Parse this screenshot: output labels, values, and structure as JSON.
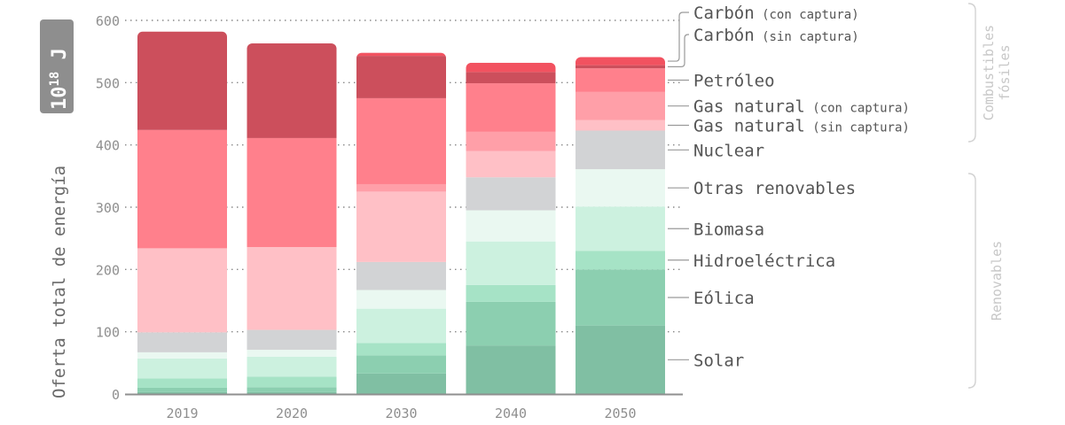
{
  "chart_data": {
    "type": "bar",
    "stacked": true,
    "unit_badge": {
      "base": "10",
      "exponent": "18",
      "unit": "J"
    },
    "ylabel": "Oferta total de energía",
    "ylim": [
      0,
      600
    ],
    "yticks": [
      "0",
      "100",
      "200",
      "300",
      "400",
      "500",
      "600"
    ],
    "grid": "dotted horizontal",
    "categories": [
      "2019",
      "2020",
      "2030",
      "2040",
      "2050"
    ],
    "series": [
      {
        "name": "Solar",
        "color": "#80bfa3",
        "values": [
          3,
          3,
          33,
          78,
          110
        ]
      },
      {
        "name": "Eólica",
        "color": "#8ccfb0",
        "values": [
          7,
          8,
          29,
          70,
          90
        ]
      },
      {
        "name": "Hidroeléctrica",
        "color": "#a6e3c6",
        "values": [
          15,
          17,
          20,
          27,
          30
        ]
      },
      {
        "name": "Biomasa",
        "color": "#ccf1df",
        "values": [
          32,
          32,
          55,
          70,
          71
        ]
      },
      {
        "name": "Otras renovables",
        "color": "#eaf8f1",
        "values": [
          10,
          11,
          30,
          50,
          60
        ]
      },
      {
        "name": "Nuclear",
        "color": "#d2d3d5",
        "values": [
          32,
          32,
          45,
          53,
          62
        ]
      },
      {
        "name": "Gas natural",
        "suffix": "(sin captura)",
        "color": "#ffc0c6",
        "values": [
          135,
          133,
          113,
          42,
          17
        ]
      },
      {
        "name": "Gas natural",
        "suffix": "(con captura)",
        "color": "#ff9fa8",
        "values": [
          0,
          0,
          12,
          31,
          45
        ]
      },
      {
        "name": "Petróleo",
        "color": "#ff808c",
        "values": [
          190,
          175,
          138,
          78,
          38
        ]
      },
      {
        "name": "Carbón",
        "suffix": "(sin captura)",
        "color": "#cc4f5c",
        "values": [
          158,
          152,
          68,
          18,
          5
        ]
      },
      {
        "name": "Carbón",
        "suffix": "(con captura)",
        "color": "#f25260",
        "values": [
          0,
          0,
          5,
          15,
          13
        ]
      }
    ],
    "groups": [
      {
        "lines": [
          "Combustibles",
          "fósiles"
        ]
      },
      {
        "lines": [
          "Renovables"
        ]
      }
    ]
  }
}
